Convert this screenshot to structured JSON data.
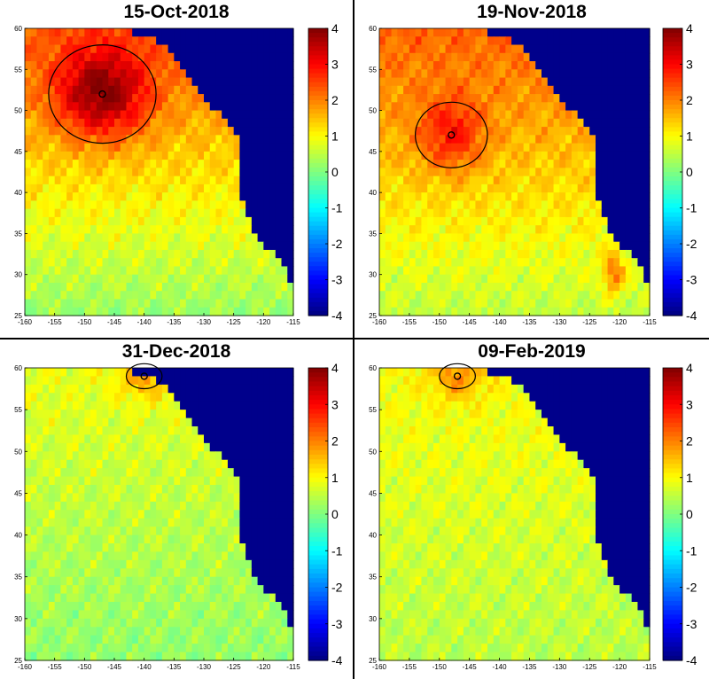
{
  "chart_data": [
    {
      "type": "heatmap",
      "title": "15-Oct-2018",
      "xlabel": "",
      "ylabel": "",
      "xlim": [
        -160,
        -115
      ],
      "ylim": [
        25,
        60
      ],
      "xticks": [
        -160,
        -155,
        -150,
        -145,
        -140,
        -135,
        -130,
        -125,
        -120,
        -115
      ],
      "yticks": [
        25,
        30,
        35,
        40,
        45,
        50,
        55,
        60
      ],
      "colorbar": {
        "min": -4,
        "max": 4,
        "ticks": [
          4,
          3,
          2,
          1,
          0,
          -1,
          -2,
          -3,
          -4
        ],
        "colormap": "jet"
      },
      "land_color": "#00008b",
      "hotspot": {
        "lon": -147,
        "lat": 52,
        "peak": 3.4,
        "contour_level": 2
      }
    },
    {
      "type": "heatmap",
      "title": "19-Nov-2018",
      "xlabel": "",
      "ylabel": "",
      "xlim": [
        -160,
        -115
      ],
      "ylim": [
        25,
        60
      ],
      "xticks": [
        -160,
        -155,
        -150,
        -145,
        -140,
        -135,
        -130,
        -125,
        -120,
        -115
      ],
      "yticks": [
        25,
        30,
        35,
        40,
        45,
        50,
        55,
        60
      ],
      "colorbar": {
        "min": -4,
        "max": 4,
        "ticks": [
          4,
          3,
          2,
          1,
          0,
          -1,
          -2,
          -3,
          -4
        ],
        "colormap": "jet"
      },
      "land_color": "#00008b",
      "hotspot": {
        "lon": -148,
        "lat": 47,
        "peak": 2.6,
        "contour_level": 2
      }
    },
    {
      "type": "heatmap",
      "title": "31-Dec-2018",
      "xlabel": "",
      "ylabel": "",
      "xlim": [
        -160,
        -115
      ],
      "ylim": [
        25,
        60
      ],
      "xticks": [
        -160,
        -155,
        -150,
        -145,
        -140,
        -135,
        -130,
        -125,
        -120,
        -115
      ],
      "yticks": [
        25,
        30,
        35,
        40,
        45,
        50,
        55,
        60
      ],
      "colorbar": {
        "min": -4,
        "max": 4,
        "ticks": [
          4,
          3,
          2,
          1,
          0,
          -1,
          -2,
          -3,
          -4
        ],
        "colormap": "jet"
      },
      "land_color": "#00008b",
      "hotspot": {
        "lon": -140,
        "lat": 59,
        "peak": 1.6,
        "contour_level": 2
      }
    },
    {
      "type": "heatmap",
      "title": "09-Feb-2019",
      "xlabel": "",
      "ylabel": "",
      "xlim": [
        -160,
        -115
      ],
      "ylim": [
        25,
        60
      ],
      "xticks": [
        -160,
        -155,
        -150,
        -145,
        -140,
        -135,
        -130,
        -125,
        -120,
        -115
      ],
      "yticks": [
        25,
        30,
        35,
        40,
        45,
        50,
        55,
        60
      ],
      "colorbar": {
        "min": -4,
        "max": 4,
        "ticks": [
          4,
          3,
          2,
          1,
          0,
          -1,
          -2,
          -3,
          -4
        ],
        "colormap": "jet"
      },
      "land_color": "#00008b",
      "hotspot": {
        "lon": -147,
        "lat": 59,
        "peak": 1.6,
        "contour_level": 2
      }
    }
  ]
}
